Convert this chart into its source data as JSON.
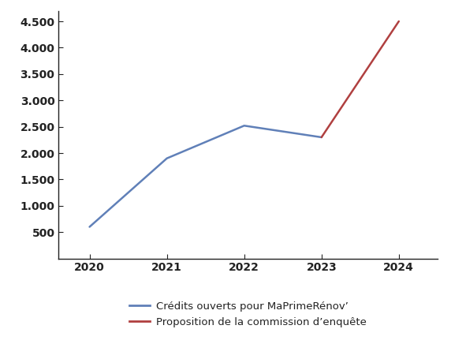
{
  "blue_x": [
    2020,
    2021,
    2022,
    2023
  ],
  "blue_y": [
    600,
    1900,
    2520,
    2300
  ],
  "red_x": [
    2023,
    2024
  ],
  "red_y": [
    2300,
    4500
  ],
  "blue_color": "#6080b8",
  "red_color": "#b04040",
  "legend_blue": "Crédits ouverts pour MaPrimeRénov’",
  "legend_red": "Proposition de la commission d’enquête",
  "yticks": [
    500,
    1000,
    1500,
    2000,
    2500,
    3000,
    3500,
    4000,
    4500
  ],
  "xticks": [
    2020,
    2021,
    2022,
    2023,
    2024
  ],
  "ylim": [
    0,
    4700
  ],
  "xlim": [
    2019.6,
    2024.5
  ],
  "background_color": "#ffffff",
  "spine_color": "#222222",
  "tick_color": "#222222",
  "label_color": "#222222"
}
